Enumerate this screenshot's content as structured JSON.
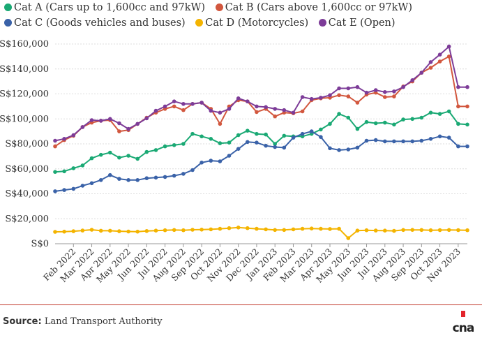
{
  "legend": [
    {
      "label": "Cat A (Cars up to 1,600cc and 97kW)",
      "color": "#1aa974"
    },
    {
      "label": "Cat B (Cars above 1,600cc or 97kW)",
      "color": "#d2573e"
    },
    {
      "label": "Cat C (Goods vehicles and buses)",
      "color": "#3a62a8"
    },
    {
      "label": "Cat D (Motorcycles)",
      "color": "#f4b400"
    },
    {
      "label": "Cat E (Open)",
      "color": "#7d3c98"
    }
  ],
  "source": {
    "label": "Source:",
    "text": "Land Transport Authority"
  },
  "logo_text": "cna",
  "chart_data": {
    "type": "line",
    "ylim": [
      0,
      160000
    ],
    "yticks": [
      0,
      20000,
      40000,
      60000,
      80000,
      100000,
      120000,
      140000,
      160000
    ],
    "ytick_labels": [
      "S$0",
      "S$20,000",
      "S$40,000",
      "S$60,000",
      "S$80,000",
      "S$100,000",
      "S$120,000",
      "S$140,000",
      "S$160,000"
    ],
    "xticks": [
      {
        "label": "Feb 2022",
        "index": 2
      },
      {
        "label": "Mar 2022",
        "index": 4
      },
      {
        "label": "Apr 2022",
        "index": 6
      },
      {
        "label": "May 2022",
        "index": 8
      },
      {
        "label": "Jun 2022",
        "index": 10
      },
      {
        "label": "Jul 2022",
        "index": 12
      },
      {
        "label": "Aug 2022",
        "index": 14
      },
      {
        "label": "Sep 2022",
        "index": 16
      },
      {
        "label": "Oct 2022",
        "index": 18
      },
      {
        "label": "Nov 2022",
        "index": 20
      },
      {
        "label": "Dec 2022",
        "index": 22
      },
      {
        "label": "Jan 2023",
        "index": 24
      },
      {
        "label": "Feb 2023",
        "index": 26
      },
      {
        "label": "Mar 2023",
        "index": 28
      },
      {
        "label": "Apr 2023",
        "index": 30
      },
      {
        "label": "May 2023",
        "index": 32
      },
      {
        "label": "Jun 2023",
        "index": 34
      },
      {
        "label": "Jul 2023",
        "index": 36
      },
      {
        "label": "Aug 2023",
        "index": 38
      },
      {
        "label": "Sep 2023",
        "index": 40
      },
      {
        "label": "Oct 2023",
        "index": 42
      },
      {
        "label": "Nov 2023",
        "index": 44
      }
    ],
    "n_points": 46,
    "series": [
      {
        "name": "Cat A (Cars up to 1,600cc and 97kW)",
        "color": "#1aa974",
        "values": [
          57500,
          58000,
          60500,
          62700,
          68500,
          71200,
          73000,
          69000,
          70500,
          68000,
          73500,
          75000,
          78000,
          79000,
          80000,
          88000,
          86000,
          84000,
          80500,
          81000,
          87000,
          90500,
          88000,
          87500,
          80000,
          86500,
          86000,
          86000,
          88000,
          91500,
          96000,
          104000,
          101000,
          92000,
          97500,
          96500,
          97000,
          95500,
          99500,
          100000,
          101000,
          105000,
          104000,
          106000,
          96000,
          95500
        ]
      },
      {
        "name": "Cat B (Cars above 1,600cc or 97kW)",
        "color": "#d2573e",
        "values": [
          78000,
          83000,
          86500,
          93500,
          97000,
          98500,
          99000,
          90000,
          91000,
          96000,
          101000,
          105000,
          108000,
          110000,
          107000,
          112000,
          113000,
          108000,
          96000,
          110000,
          115000,
          114000,
          105500,
          108000,
          102000,
          105000,
          104500,
          106000,
          115000,
          116500,
          117000,
          119000,
          118000,
          113000,
          119500,
          121000,
          117500,
          118000,
          126000,
          130000,
          137000,
          141000,
          146000,
          150000,
          110000,
          110000
        ]
      },
      {
        "name": "Cat C (Goods vehicles and buses)",
        "color": "#3a62a8",
        "values": [
          42000,
          43000,
          44000,
          46500,
          48500,
          51000,
          55000,
          52000,
          51000,
          51000,
          52500,
          53000,
          53500,
          54500,
          56000,
          59000,
          65000,
          66500,
          66000,
          70500,
          76000,
          81500,
          81000,
          78500,
          77500,
          77000,
          85000,
          88000,
          90000,
          85500,
          76500,
          75000,
          75500,
          77000,
          82500,
          83000,
          82000,
          82000,
          82000,
          82000,
          82500,
          84000,
          86000,
          85000,
          78000,
          78000
        ]
      },
      {
        "name": "Cat D (Motorcycles)",
        "color": "#f4b400",
        "values": [
          9500,
          9700,
          10000,
          10600,
          11200,
          10400,
          10400,
          10000,
          9800,
          9700,
          10200,
          10500,
          10800,
          11000,
          10800,
          11200,
          11300,
          11500,
          12000,
          12500,
          13000,
          12500,
          12000,
          11500,
          11000,
          11000,
          11500,
          12000,
          12200,
          12000,
          11800,
          12000,
          4500,
          10500,
          10800,
          10600,
          10500,
          10300,
          11000,
          11100,
          11000,
          10800,
          10900,
          11000,
          10900,
          10800
        ]
      },
      {
        "name": "Cat E (Open)",
        "color": "#7d3c98",
        "values": [
          82500,
          84000,
          87000,
          93500,
          99000,
          98500,
          100000,
          96500,
          92000,
          96000,
          100500,
          106500,
          110000,
          114000,
          112000,
          112000,
          113000,
          106500,
          105000,
          108000,
          116500,
          114000,
          110000,
          109500,
          108000,
          107000,
          105000,
          117500,
          116000,
          117000,
          119000,
          124500,
          124500,
          125500,
          121000,
          123000,
          121500,
          122000,
          125500,
          131000,
          137000,
          145500,
          151500,
          158000,
          125500,
          125500
        ]
      }
    ]
  }
}
